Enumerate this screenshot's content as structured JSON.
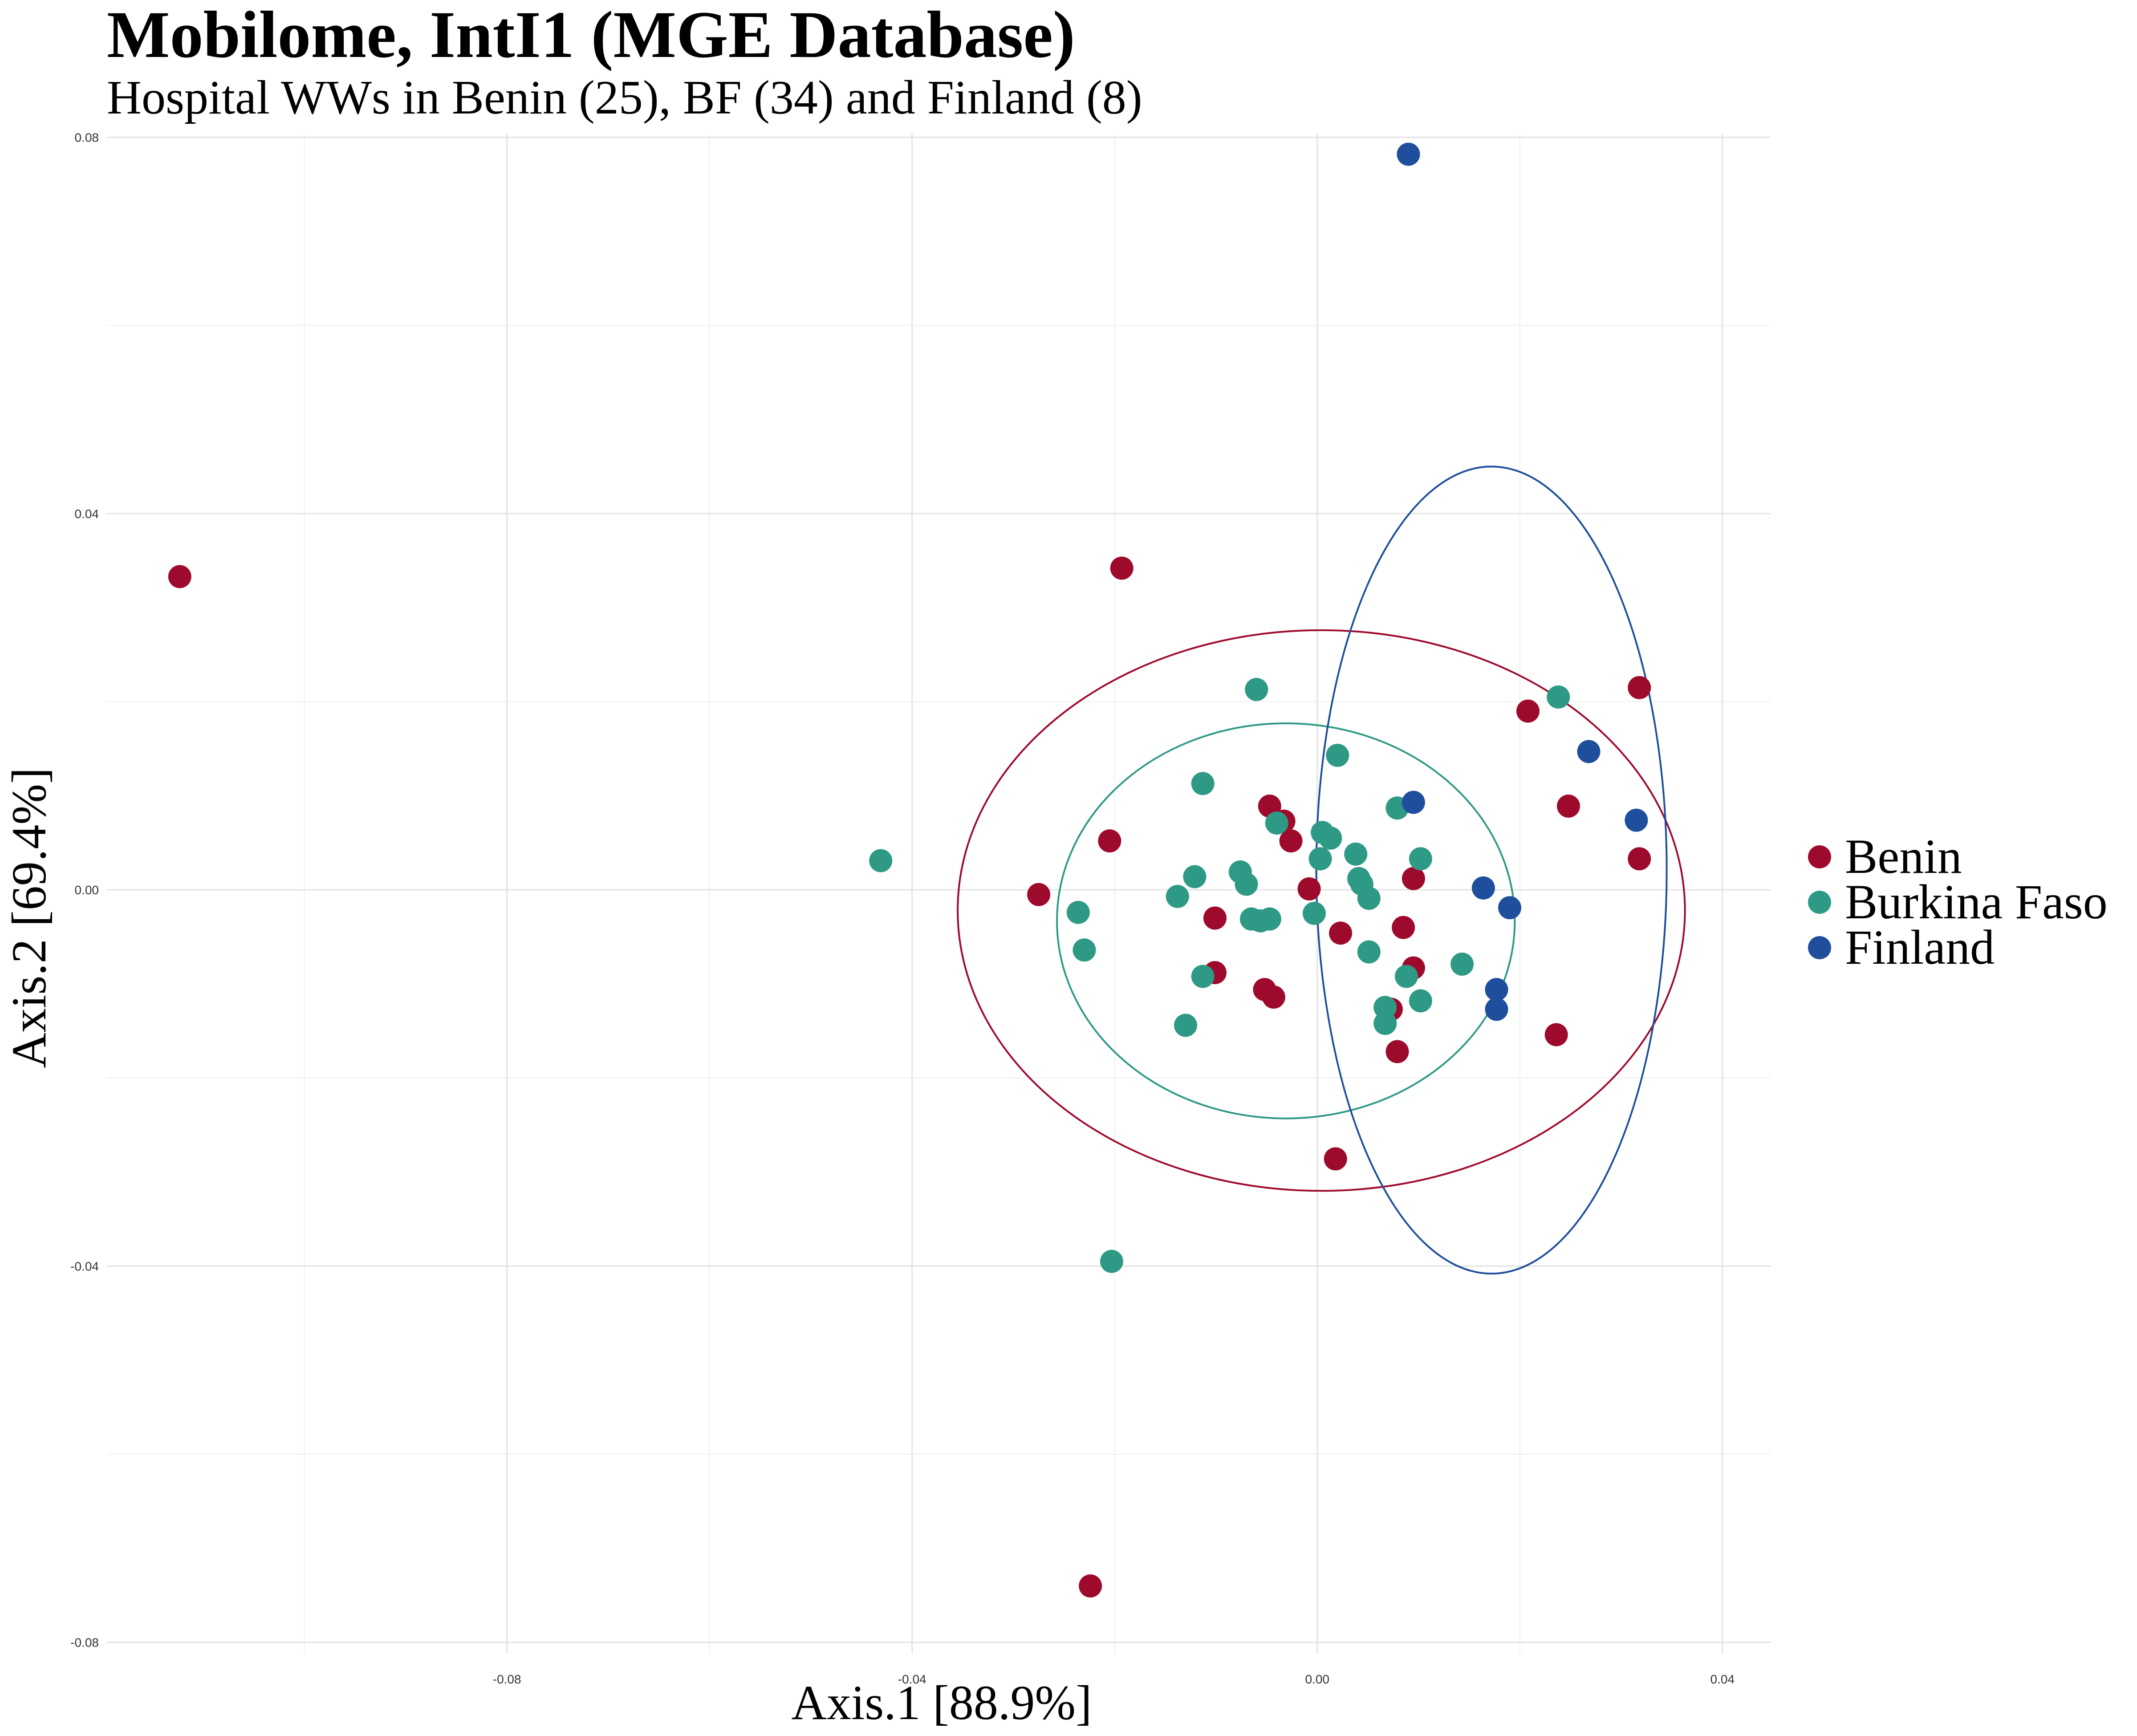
{
  "chart_data": {
    "type": "scatter",
    "title": "Mobilome, IntI1 (MGE Database)",
    "subtitle": "Hospital WWs in Benin (25), BF (34) and Finland (8)",
    "xlabel": "Axis.1   [88.9%]",
    "ylabel": "Axis.2   [69.4%]",
    "xlim": [
      -0.1195,
      0.0448
    ],
    "ylim": [
      -0.0812,
      0.0804
    ],
    "x_ticks": [
      -0.08,
      -0.04,
      0.0,
      0.04
    ],
    "x_tick_labels": [
      "-0.08",
      "-0.04",
      "0.00",
      "0.04"
    ],
    "y_ticks": [
      -0.08,
      -0.04,
      0.0,
      0.04,
      0.08
    ],
    "y_tick_labels": [
      "-0.08",
      "-0.04",
      "0.00",
      "0.04",
      "0.08"
    ],
    "grid": true,
    "legend_position": "right",
    "series": [
      {
        "name": "Benin",
        "color": "#9E0A2C",
        "points": [
          [
            -0.1123,
            0.0333
          ],
          [
            -0.0193,
            0.0342
          ],
          [
            0.0318,
            0.0215
          ],
          [
            0.0208,
            0.019
          ],
          [
            0.0248,
            0.0089
          ],
          [
            0.0318,
            0.0033
          ],
          [
            -0.0205,
            0.0052
          ],
          [
            -0.0047,
            0.0089
          ],
          [
            -0.0033,
            0.0073
          ],
          [
            -0.0026,
            0.0052
          ],
          [
            -0.0275,
            -0.0005
          ],
          [
            -0.0008,
            0.0001
          ],
          [
            0.0095,
            0.0012
          ],
          [
            -0.0101,
            -0.003
          ],
          [
            0.0023,
            -0.0046
          ],
          [
            0.0085,
            -0.004
          ],
          [
            -0.0101,
            -0.0088
          ],
          [
            0.0095,
            -0.0083
          ],
          [
            -0.0052,
            -0.0106
          ],
          [
            -0.0043,
            -0.0114
          ],
          [
            0.0073,
            -0.0127
          ],
          [
            0.0236,
            -0.0154
          ],
          [
            0.0079,
            -0.0172
          ],
          [
            0.0018,
            -0.0286
          ],
          [
            -0.0224,
            -0.074
          ]
        ]
      },
      {
        "name": "Burkina Faso",
        "color": "#2E9985",
        "points": [
          [
            -0.006,
            0.0213
          ],
          [
            0.0238,
            0.0205
          ],
          [
            0.002,
            0.0143
          ],
          [
            -0.0113,
            0.0113
          ],
          [
            0.0079,
            0.0087
          ],
          [
            -0.004,
            0.0071
          ],
          [
            0.0005,
            0.0061
          ],
          [
            0.0013,
            0.0055
          ],
          [
            0.0038,
            0.0038
          ],
          [
            0.0102,
            0.0033
          ],
          [
            0.0003,
            0.0033
          ],
          [
            -0.0431,
            0.0031
          ],
          [
            -0.0076,
            0.0019
          ],
          [
            -0.0121,
            0.0014
          ],
          [
            0.0041,
            0.0012
          ],
          [
            0.0044,
            0.0006
          ],
          [
            -0.007,
            0.0006
          ],
          [
            -0.0138,
            -0.0007
          ],
          [
            0.0051,
            -0.0009
          ],
          [
            -0.0236,
            -0.0024
          ],
          [
            -0.0003,
            -0.0025
          ],
          [
            -0.0065,
            -0.0031
          ],
          [
            -0.0056,
            -0.0033
          ],
          [
            -0.0047,
            -0.0031
          ],
          [
            -0.023,
            -0.0064
          ],
          [
            0.0051,
            -0.0066
          ],
          [
            0.0143,
            -0.0079
          ],
          [
            -0.0113,
            -0.0092
          ],
          [
            0.0088,
            -0.0092
          ],
          [
            0.0102,
            -0.0118
          ],
          [
            0.0067,
            -0.0125
          ],
          [
            0.0067,
            -0.0142
          ],
          [
            -0.013,
            -0.0144
          ],
          [
            -0.0203,
            -0.0395
          ]
        ]
      },
      {
        "name": "Finland",
        "color": "#1E4E9C",
        "points": [
          [
            0.009,
            0.0782
          ],
          [
            0.0268,
            0.0147
          ],
          [
            0.0095,
            0.0093
          ],
          [
            0.0315,
            0.0074
          ],
          [
            0.0164,
            0.0002
          ],
          [
            0.019,
            -0.0019
          ],
          [
            0.0177,
            -0.0106
          ],
          [
            0.0177,
            -0.0127
          ]
        ]
      }
    ],
    "ellipses": [
      {
        "series": "Benin",
        "color": "#9E0A2C",
        "center": [
          0.0004,
          -0.0022
        ],
        "radii": [
          0.0359,
          0.0298
        ]
      },
      {
        "series": "Burkina Faso",
        "color": "#2E9985",
        "center": [
          -0.0031,
          -0.0033
        ],
        "radii": [
          0.0226,
          0.021
        ]
      },
      {
        "series": "Finland",
        "color": "#1E4E9C",
        "center": [
          0.0172,
          0.0021
        ],
        "radii": [
          0.0173,
          0.0429
        ]
      }
    ]
  }
}
